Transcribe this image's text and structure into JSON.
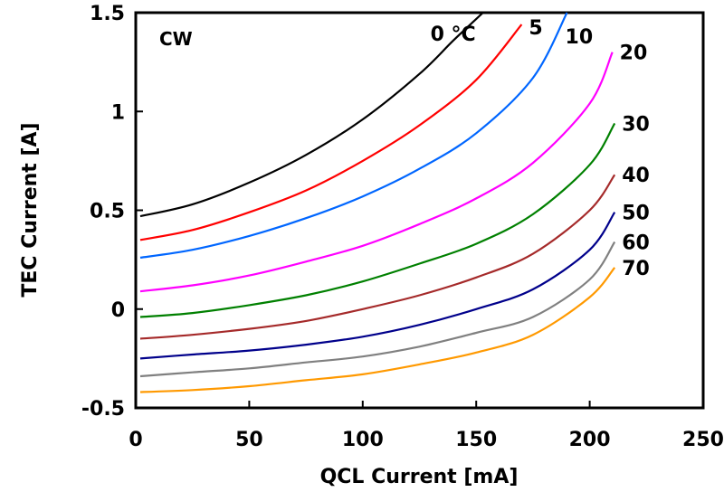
{
  "chart_data": {
    "type": "line",
    "title": "",
    "annotation": "CW",
    "xlabel": "QCL Current [mA]",
    "ylabel": "TEC Current [A]",
    "xlim": [
      0,
      250
    ],
    "ylim": [
      -0.5,
      1.5
    ],
    "xticks": [
      0,
      50,
      100,
      150,
      200,
      250
    ],
    "yticks": [
      -0.5,
      0,
      0.5,
      1,
      1.5
    ],
    "xtick_labels": [
      "0",
      "50",
      "100",
      "150",
      "200",
      "250"
    ],
    "ytick_labels": [
      "-0.5",
      "0",
      "0.5",
      "1",
      "1.5"
    ],
    "grid": false,
    "series": [
      {
        "name": "0 °C",
        "label": "0 °C",
        "color": "#000000",
        "x": [
          2,
          25,
          50,
          75,
          100,
          125,
          140,
          153
        ],
        "y": [
          0.47,
          0.53,
          0.64,
          0.78,
          0.96,
          1.19,
          1.36,
          1.5
        ]
      },
      {
        "name": "5",
        "label": "5",
        "color": "#ff0000",
        "x": [
          2,
          25,
          50,
          75,
          100,
          125,
          150,
          170
        ],
        "y": [
          0.35,
          0.4,
          0.49,
          0.6,
          0.75,
          0.93,
          1.16,
          1.44
        ]
      },
      {
        "name": "10",
        "label": "10",
        "color": "#0066ff",
        "x": [
          2,
          25,
          50,
          75,
          100,
          125,
          150,
          175,
          190
        ],
        "y": [
          0.26,
          0.3,
          0.37,
          0.46,
          0.57,
          0.71,
          0.89,
          1.17,
          1.51
        ]
      },
      {
        "name": "20",
        "label": "20",
        "color": "#ff00ff",
        "x": [
          2,
          25,
          50,
          75,
          100,
          125,
          150,
          175,
          200,
          210
        ],
        "y": [
          0.09,
          0.12,
          0.17,
          0.24,
          0.32,
          0.43,
          0.56,
          0.74,
          1.04,
          1.3
        ]
      },
      {
        "name": "30",
        "label": "30",
        "color": "#008000",
        "x": [
          2,
          25,
          50,
          75,
          100,
          125,
          150,
          175,
          200,
          211
        ],
        "y": [
          -0.04,
          -0.02,
          0.02,
          0.07,
          0.14,
          0.23,
          0.33,
          0.48,
          0.73,
          0.94
        ]
      },
      {
        "name": "40",
        "label": "40",
        "color": "#a52a2a",
        "x": [
          2,
          25,
          50,
          75,
          100,
          125,
          150,
          175,
          200,
          211
        ],
        "y": [
          -0.15,
          -0.13,
          -0.1,
          -0.06,
          0.0,
          0.07,
          0.16,
          0.28,
          0.5,
          0.68
        ]
      },
      {
        "name": "50",
        "label": "50",
        "color": "#00008b",
        "x": [
          2,
          25,
          50,
          75,
          100,
          125,
          150,
          175,
          200,
          211
        ],
        "y": [
          -0.25,
          -0.23,
          -0.21,
          -0.18,
          -0.14,
          -0.08,
          0.0,
          0.1,
          0.3,
          0.49
        ]
      },
      {
        "name": "60",
        "label": "60",
        "color": "#808080",
        "x": [
          2,
          25,
          50,
          75,
          100,
          125,
          150,
          175,
          200,
          211
        ],
        "y": [
          -0.34,
          -0.32,
          -0.3,
          -0.27,
          -0.24,
          -0.19,
          -0.12,
          -0.04,
          0.15,
          0.34
        ]
      },
      {
        "name": "70",
        "label": "70",
        "color": "#ff9900",
        "x": [
          2,
          25,
          50,
          75,
          100,
          125,
          150,
          175,
          200,
          211
        ],
        "y": [
          -0.42,
          -0.41,
          -0.39,
          -0.36,
          -0.33,
          -0.28,
          -0.22,
          -0.13,
          0.06,
          0.21
        ]
      }
    ]
  }
}
